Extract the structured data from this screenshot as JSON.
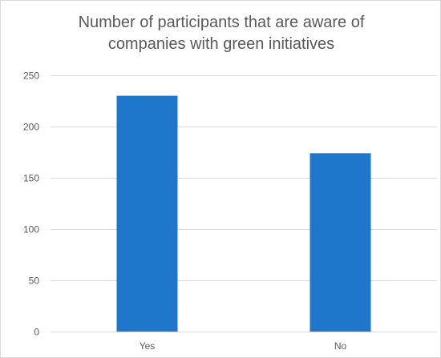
{
  "chart_data": {
    "type": "bar",
    "title_lines": [
      "Number of participants that are aware of",
      "companies with green initiatives"
    ],
    "categories": [
      "Yes",
      "No"
    ],
    "values": [
      230,
      174
    ],
    "ylim": [
      0,
      250
    ],
    "yticks": [
      0,
      50,
      100,
      150,
      200,
      250
    ],
    "xlabel": "",
    "ylabel": "",
    "grid": true,
    "legend": "none",
    "bar_color": "#1F77CC",
    "grid_color": "#d9d9d9",
    "text_color": "#595959"
  }
}
